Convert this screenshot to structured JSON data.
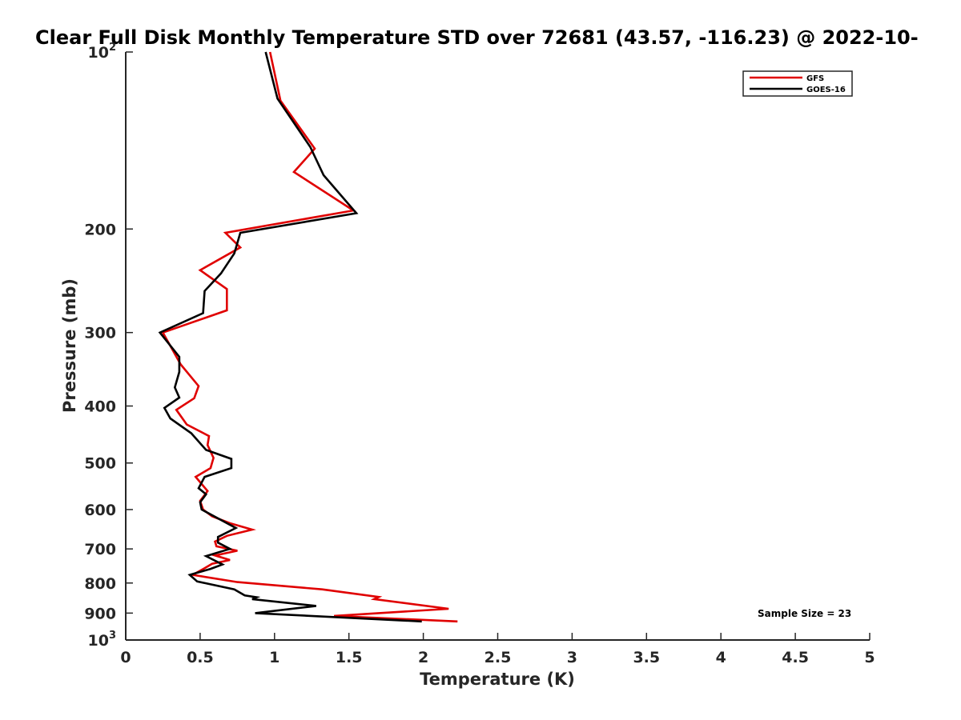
{
  "chart_data": {
    "type": "line",
    "title": "Clear Full Disk Monthly Temperature STD over 72681 (43.57, -116.23) @ 2022-10-",
    "xlabel": "Temperature (K)",
    "ylabel": "Pressure (mb)",
    "xlim": [
      0,
      5
    ],
    "ylim": [
      100,
      1000
    ],
    "yscale": "log",
    "y_reversed": true,
    "x_ticks": [
      "0",
      "0.5",
      "1",
      "1.5",
      "2",
      "2.5",
      "3",
      "3.5",
      "4",
      "4.5",
      "5"
    ],
    "x_tick_values": [
      0,
      0.5,
      1,
      1.5,
      2,
      2.5,
      3,
      3.5,
      4,
      4.5,
      5
    ],
    "y_ticks": [
      {
        "value": 100,
        "base": "10",
        "exp": "2"
      },
      {
        "value": 200,
        "label": "200"
      },
      {
        "value": 300,
        "label": "300"
      },
      {
        "value": 400,
        "label": "400"
      },
      {
        "value": 500,
        "label": "500"
      },
      {
        "value": 600,
        "label": "600"
      },
      {
        "value": 700,
        "label": "700"
      },
      {
        "value": 800,
        "label": "800"
      },
      {
        "value": 900,
        "label": "900"
      },
      {
        "value": 1000,
        "base": "10",
        "exp": "3"
      }
    ],
    "legend_position": "top-right",
    "annotation": "Sample Size = 23",
    "series": [
      {
        "name": "GFS",
        "color": "#e00000",
        "points": [
          [
            0.97,
            100
          ],
          [
            1.04,
            121
          ],
          [
            1.27,
            146
          ],
          [
            1.13,
            160
          ],
          [
            1.53,
            186
          ],
          [
            0.67,
            203
          ],
          [
            0.77,
            215
          ],
          [
            0.5,
            235
          ],
          [
            0.68,
            253
          ],
          [
            0.68,
            275
          ],
          [
            0.25,
            300
          ],
          [
            0.37,
            340
          ],
          [
            0.49,
            370
          ],
          [
            0.46,
            388
          ],
          [
            0.34,
            406
          ],
          [
            0.41,
            430
          ],
          [
            0.56,
            450
          ],
          [
            0.55,
            466
          ],
          [
            0.59,
            490
          ],
          [
            0.57,
            510
          ],
          [
            0.47,
            528
          ],
          [
            0.55,
            558
          ],
          [
            0.5,
            580
          ],
          [
            0.52,
            600
          ],
          [
            0.58,
            616
          ],
          [
            0.7,
            633
          ],
          [
            0.85,
            649
          ],
          [
            0.68,
            665
          ],
          [
            0.6,
            680
          ],
          [
            0.61,
            693
          ],
          [
            0.75,
            705
          ],
          [
            0.6,
            718
          ],
          [
            0.7,
            731
          ],
          [
            0.58,
            742
          ],
          [
            0.53,
            755
          ],
          [
            0.45,
            775
          ],
          [
            0.75,
            797
          ],
          [
            1.32,
            820
          ],
          [
            1.7,
            845
          ],
          [
            1.67,
            852
          ],
          [
            2.17,
            885
          ],
          [
            1.4,
            910
          ],
          [
            2.23,
            930
          ]
        ]
      },
      {
        "name": "GOES-16",
        "color": "#000000",
        "points": [
          [
            0.94,
            100
          ],
          [
            1.02,
            120
          ],
          [
            1.24,
            145
          ],
          [
            1.33,
            162
          ],
          [
            1.55,
            188
          ],
          [
            0.77,
            203
          ],
          [
            0.73,
            220
          ],
          [
            0.64,
            238
          ],
          [
            0.53,
            255
          ],
          [
            0.52,
            278
          ],
          [
            0.23,
            300
          ],
          [
            0.36,
            330
          ],
          [
            0.36,
            350
          ],
          [
            0.33,
            372
          ],
          [
            0.36,
            387
          ],
          [
            0.26,
            403
          ],
          [
            0.3,
            420
          ],
          [
            0.44,
            445
          ],
          [
            0.54,
            475
          ],
          [
            0.71,
            492
          ],
          [
            0.71,
            510
          ],
          [
            0.53,
            528
          ],
          [
            0.49,
            552
          ],
          [
            0.54,
            565
          ],
          [
            0.5,
            583
          ],
          [
            0.51,
            600
          ],
          [
            0.74,
            645
          ],
          [
            0.62,
            668
          ],
          [
            0.62,
            683
          ],
          [
            0.7,
            700
          ],
          [
            0.54,
            720
          ],
          [
            0.65,
            744
          ],
          [
            0.57,
            757
          ],
          [
            0.43,
            775
          ],
          [
            0.48,
            795
          ],
          [
            0.73,
            820
          ],
          [
            0.8,
            840
          ],
          [
            0.88,
            846
          ],
          [
            0.85,
            852
          ],
          [
            1.28,
            875
          ],
          [
            0.87,
            900
          ],
          [
            1.99,
            930
          ]
        ]
      }
    ]
  }
}
